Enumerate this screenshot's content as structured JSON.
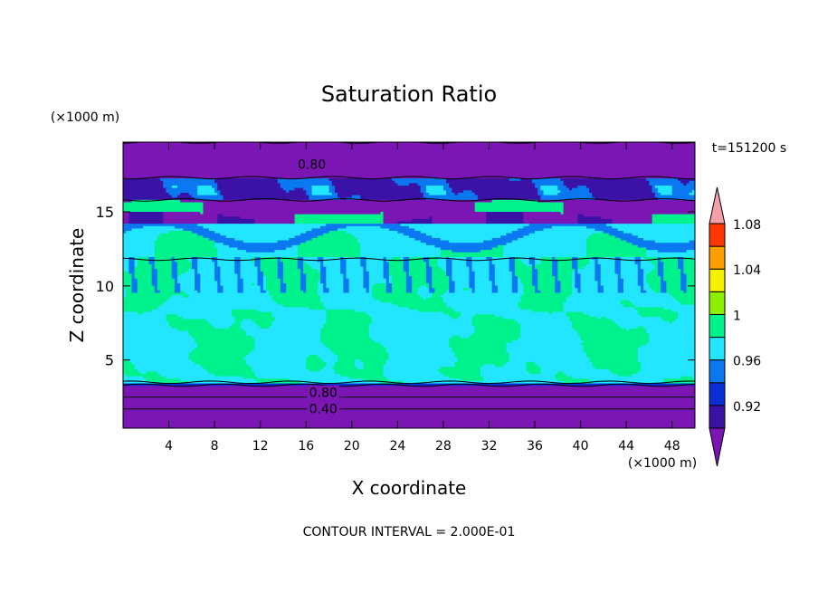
{
  "chart_data": {
    "type": "heatmap",
    "title": "Saturation Ratio",
    "xlabel": "X coordinate",
    "ylabel": "Z coordinate",
    "x_unit": "(×1000 m)",
    "y_unit": "(×1000 m)",
    "time_label": "t=151200 s",
    "footer": "CONTOUR INTERVAL = 2.000E-01",
    "xlim": [
      0,
      50
    ],
    "ylim": [
      0.4,
      19.7
    ],
    "x_ticks": [
      4,
      8,
      12,
      16,
      20,
      24,
      28,
      32,
      36,
      40,
      44,
      48
    ],
    "y_ticks": [
      5,
      10,
      15
    ],
    "contour_labels": [
      {
        "text": "0.80",
        "x": 16.5,
        "z": 18.2
      },
      {
        "text": "0.80",
        "x": 17.5,
        "z": 2.8
      },
      {
        "text": "0.40",
        "x": 17.5,
        "z": 1.7
      }
    ],
    "colorbar": {
      "levels": [
        0.92,
        0.94,
        0.96,
        0.98,
        1.0,
        1.02,
        1.04,
        1.06,
        1.08,
        1.1
      ],
      "tick_labels": [
        "0.92",
        "0.96",
        "1",
        "1.04",
        "1.08"
      ],
      "colors": [
        "#7b16b4",
        "#3a12a6",
        "#0a2fd6",
        "#0a78f0",
        "#22e6ff",
        "#00f28c",
        "#8cf000",
        "#f5f000",
        "#ff9e00",
        "#ff3600",
        "#f5a0a8"
      ],
      "extend": "both"
    },
    "layers": [
      {
        "name": "0.76",
        "z_from": 0.4,
        "z_to": 3.3
      },
      {
        "name": "0.94",
        "z_from": 3.3,
        "z_to": 3.5
      },
      {
        "name": "1.00",
        "z_from": 3.5,
        "z_to": 11.8
      },
      {
        "name": "0.76",
        "z_from": 14.3,
        "z_to": 15.8
      },
      {
        "name": "0.92",
        "z_from": 15.8,
        "z_to": 17.3
      },
      {
        "name": "0.76",
        "z_from": 17.3,
        "z_to": 19.7
      }
    ]
  }
}
